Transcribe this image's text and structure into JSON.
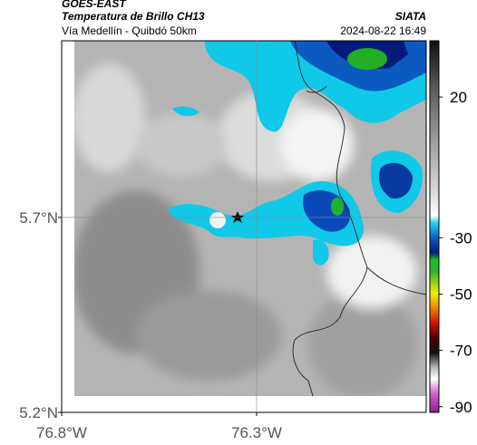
{
  "header": {
    "title": "GOES-EAST",
    "subtitle": "Temperatura de Brillo CH13",
    "source": "SIATA",
    "route": "Vía Medellín - Quibdó 50km",
    "datetime": "2024-08-22 16:49"
  },
  "map": {
    "xlim": [
      -76.8,
      -75.865
    ],
    "ylim": [
      5.2,
      6.153
    ],
    "lat_ticks": [
      {
        "value": 5.7,
        "label": "5.7°N"
      },
      {
        "value": 5.2,
        "label": "5.2°N"
      }
    ],
    "lon_ticks": [
      {
        "value": -76.8,
        "label": "76.8°W"
      },
      {
        "value": -76.3,
        "label": "76.3°W"
      }
    ]
  },
  "colorbar": {
    "lim": [
      -92,
      40
    ],
    "ticks": [
      20,
      -30,
      -50,
      -70,
      -90
    ]
  }
}
